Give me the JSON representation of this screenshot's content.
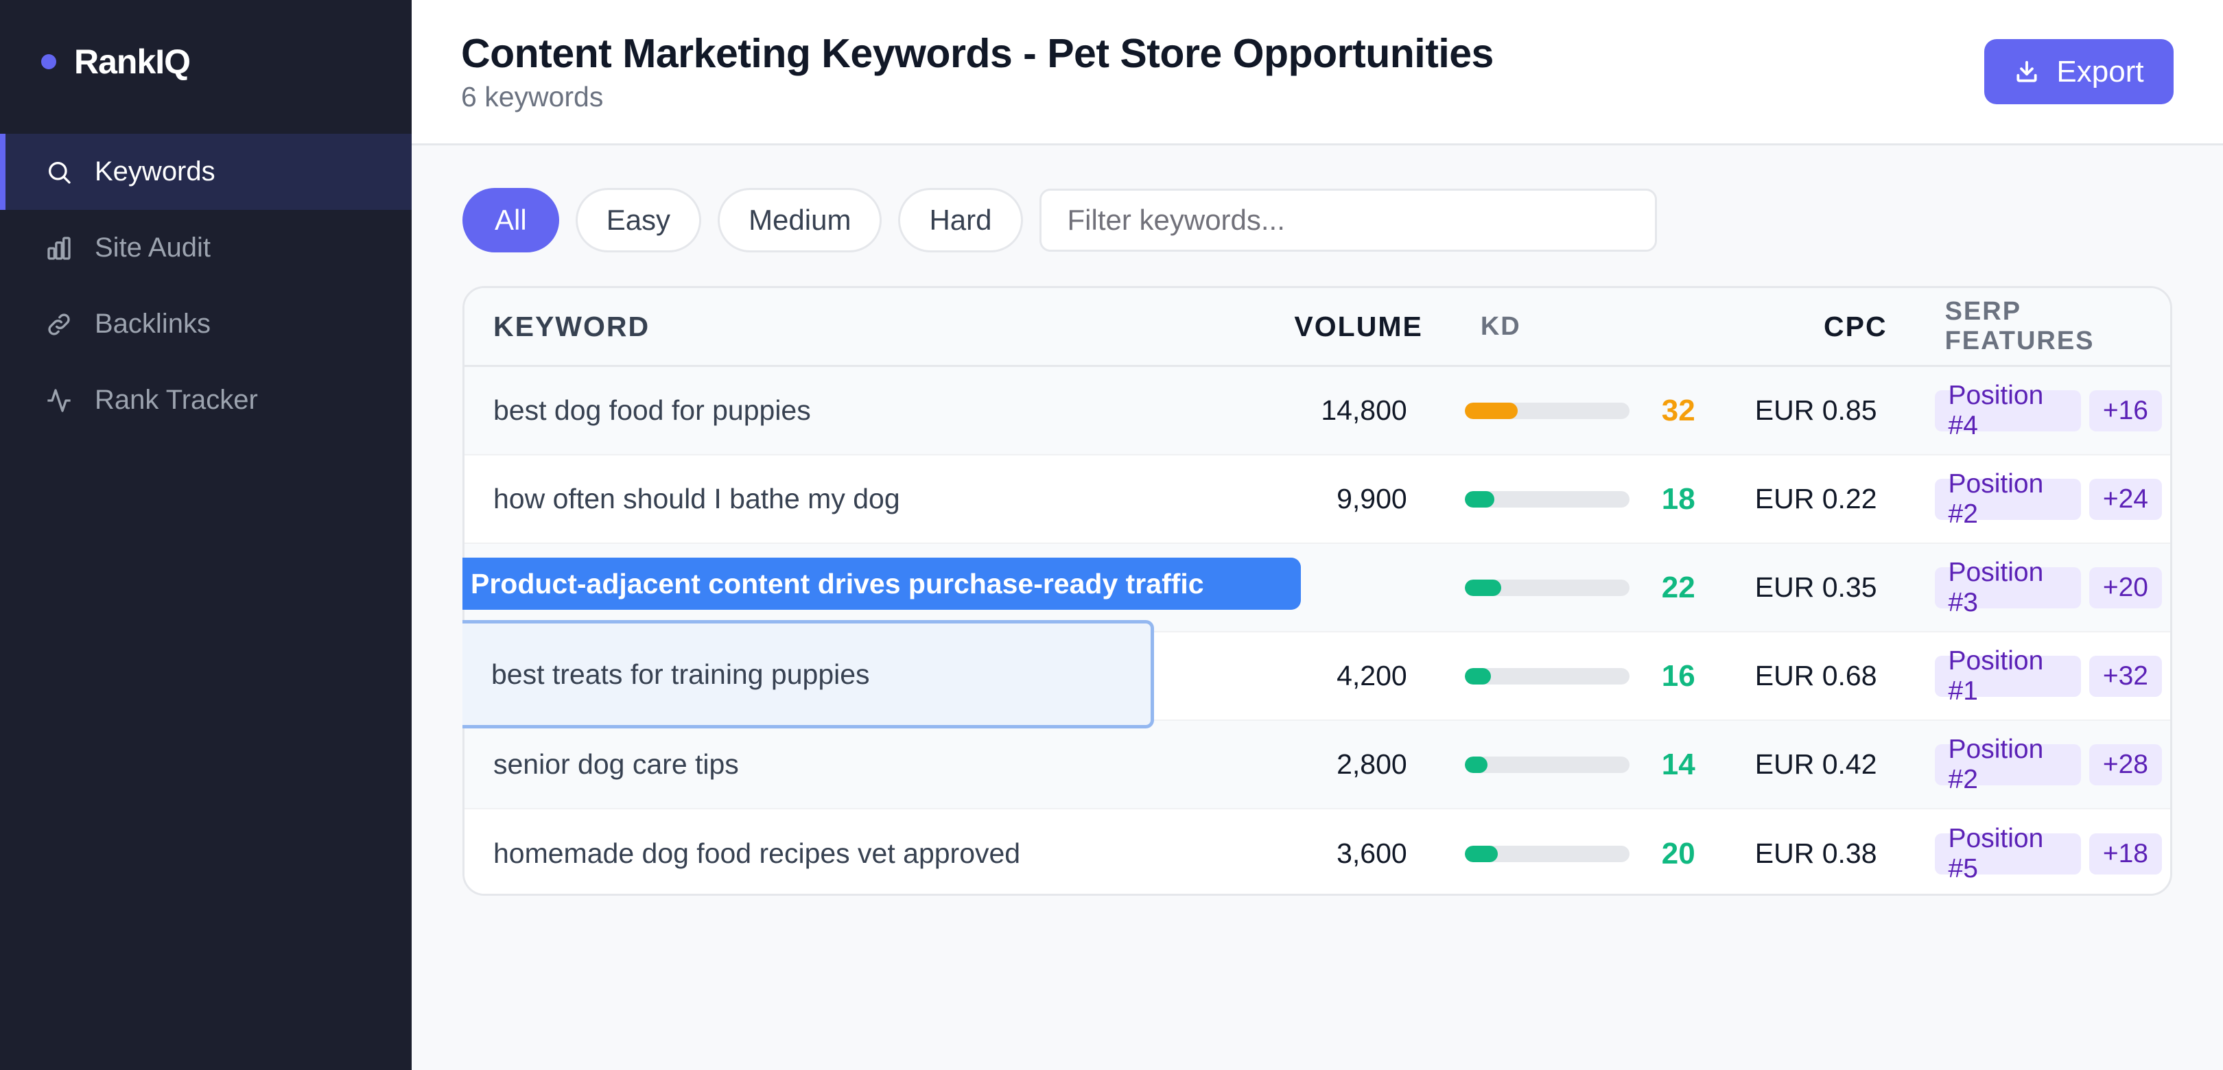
{
  "sidebar": {
    "brand": "RankIQ",
    "items": [
      {
        "label": "Keywords",
        "icon": "search-icon",
        "active": true
      },
      {
        "label": "Site Audit",
        "icon": "bar-chart-icon",
        "active": false
      },
      {
        "label": "Backlinks",
        "icon": "link-icon",
        "active": false
      },
      {
        "label": "Rank Tracker",
        "icon": "activity-icon",
        "active": false
      }
    ]
  },
  "header": {
    "title": "Content Marketing Keywords - Pet Store Opportunities",
    "subtitle": "6 keywords",
    "export_label": "Export",
    "export_icon": "download-icon"
  },
  "filters": {
    "pills": [
      "All",
      "Easy",
      "Medium",
      "Hard"
    ],
    "active": "All",
    "search_placeholder": "Filter keywords..."
  },
  "table": {
    "columns": [
      "KEYWORD",
      "VOLUME",
      "KD",
      "CPC",
      "SERP FEATURES"
    ],
    "rows": [
      {
        "keyword": "best dog food for puppies",
        "volume": "14,800",
        "kd": 32,
        "kd_color": "#f59e0b",
        "cpc": "EUR 0.85",
        "position": "Position #4",
        "extra": "+16"
      },
      {
        "keyword": "how often should I bathe my dog",
        "volume": "9,900",
        "kd": 18,
        "kd_color": "#10b981",
        "cpc": "EUR 0.22",
        "position": "Position #2",
        "extra": "+24"
      },
      {
        "keyword": "",
        "volume": "",
        "kd": 22,
        "kd_color": "#10b981",
        "cpc": "EUR 0.35",
        "position": "Position #3",
        "extra": "+20"
      },
      {
        "keyword": "best treats for training puppies",
        "volume": "4,200",
        "kd": 16,
        "kd_color": "#10b981",
        "cpc": "EUR 0.68",
        "position": "Position #1",
        "extra": "+32"
      },
      {
        "keyword": "senior dog care tips",
        "volume": "2,800",
        "kd": 14,
        "kd_color": "#10b981",
        "cpc": "EUR 0.42",
        "position": "Position #2",
        "extra": "+28"
      },
      {
        "keyword": "homemade dog food recipes vet approved",
        "volume": "3,600",
        "kd": 20,
        "kd_color": "#10b981",
        "cpc": "EUR 0.38",
        "position": "Position #5",
        "extra": "+18"
      }
    ]
  },
  "annotation": {
    "tooltip": "Product-adjacent content drives purchase-ready traffic",
    "highlighted_keyword": "best treats for training puppies"
  },
  "colors": {
    "accent": "#6366f1",
    "sidebar_bg": "#1c1f2e",
    "kd_easy": "#10b981",
    "kd_medium": "#f59e0b",
    "badge_bg": "#ede9fe",
    "badge_text": "#5b21b6",
    "tooltip_bg": "#3b82f6"
  }
}
